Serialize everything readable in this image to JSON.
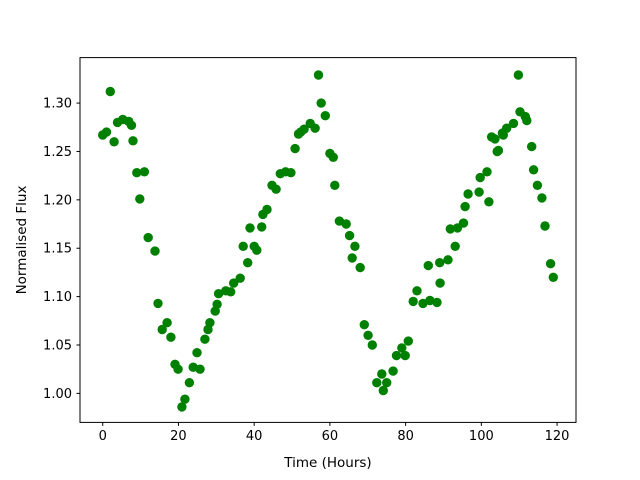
{
  "chart_data": {
    "type": "scatter",
    "title": "",
    "xlabel": "Time (Hours)",
    "ylabel": "Normalised Flux",
    "legend": null,
    "grid": false,
    "marker_color": "#008000",
    "spine_color": "#000000",
    "background_color": "#ffffff",
    "marker_radius_px": 4.7,
    "xlim": [
      -6.0,
      125.0
    ],
    "ylim": [
      0.97,
      1.347
    ],
    "xticks": [
      0,
      20,
      40,
      60,
      80,
      100,
      120
    ],
    "xtick_labels": [
      "0",
      "20",
      "40",
      "60",
      "80",
      "100",
      "120"
    ],
    "yticks": [
      1.0,
      1.05,
      1.1,
      1.15,
      1.2,
      1.25,
      1.3
    ],
    "ytick_labels": [
      "1.00",
      "1.05",
      "1.10",
      "1.15",
      "1.20",
      "1.25",
      "1.30"
    ],
    "x": [
      0.0,
      1.0,
      2.0,
      3.0,
      3.9,
      5.3,
      6.9,
      7.6,
      8.0,
      9.0,
      9.8,
      11.0,
      12.0,
      13.8,
      14.6,
      15.7,
      17.0,
      18.0,
      19.1,
      19.9,
      20.9,
      21.7,
      22.9,
      23.9,
      24.9,
      25.7,
      27.0,
      27.8,
      28.3,
      29.7,
      30.2,
      30.6,
      32.5,
      33.8,
      34.6,
      36.3,
      37.1,
      38.3,
      38.9,
      40.0,
      40.7,
      42.0,
      42.3,
      43.4,
      44.7,
      45.8,
      46.9,
      48.3,
      49.7,
      50.8,
      51.7,
      52.3,
      53.2,
      54.8,
      56.1,
      57.0,
      57.7,
      58.8,
      60.0,
      60.9,
      61.3,
      62.5,
      64.3,
      65.2,
      65.9,
      66.6,
      68.0,
      69.1,
      70.1,
      71.2,
      72.4,
      73.7,
      74.1,
      75.0,
      76.7,
      77.6,
      79.0,
      79.9,
      80.7,
      82.0,
      83.0,
      84.6,
      86.0,
      86.4,
      88.3,
      89.0,
      89.1,
      91.2,
      91.8,
      93.1,
      93.7,
      95.3,
      95.7,
      96.5,
      99.4,
      99.7,
      101.5,
      102.0,
      102.7,
      103.6,
      104.2,
      104.5,
      105.6,
      105.8,
      106.7,
      108.5,
      109.8,
      110.2,
      111.6,
      112.0,
      113.3,
      113.8,
      114.8,
      116.0,
      116.8,
      118.3,
      119.0
    ],
    "y": [
      1.267,
      1.27,
      1.312,
      1.26,
      1.28,
      1.283,
      1.281,
      1.277,
      1.261,
      1.228,
      1.201,
      1.229,
      1.161,
      1.147,
      1.093,
      1.066,
      1.073,
      1.058,
      1.03,
      1.025,
      0.986,
      0.994,
      1.011,
      1.027,
      1.042,
      1.025,
      1.056,
      1.066,
      1.073,
      1.085,
      1.092,
      1.103,
      1.106,
      1.105,
      1.114,
      1.119,
      1.152,
      1.135,
      1.171,
      1.152,
      1.148,
      1.172,
      1.185,
      1.19,
      1.215,
      1.211,
      1.227,
      1.229,
      1.228,
      1.253,
      1.268,
      1.27,
      1.273,
      1.279,
      1.274,
      1.329,
      1.3,
      1.287,
      1.248,
      1.244,
      1.215,
      1.178,
      1.175,
      1.163,
      1.14,
      1.152,
      1.13,
      1.071,
      1.06,
      1.05,
      1.011,
      1.02,
      1.003,
      1.011,
      1.023,
      1.039,
      1.047,
      1.039,
      1.054,
      1.095,
      1.106,
      1.093,
      1.132,
      1.096,
      1.094,
      1.135,
      1.114,
      1.138,
      1.17,
      1.152,
      1.171,
      1.176,
      1.193,
      1.206,
      1.208,
      1.223,
      1.229,
      1.198,
      1.265,
      1.263,
      1.25,
      1.251,
      1.269,
      1.267,
      1.274,
      1.279,
      1.329,
      1.291,
      1.286,
      1.282,
      1.255,
      1.231,
      1.215,
      1.202,
      1.173,
      1.134,
      1.12
    ]
  }
}
